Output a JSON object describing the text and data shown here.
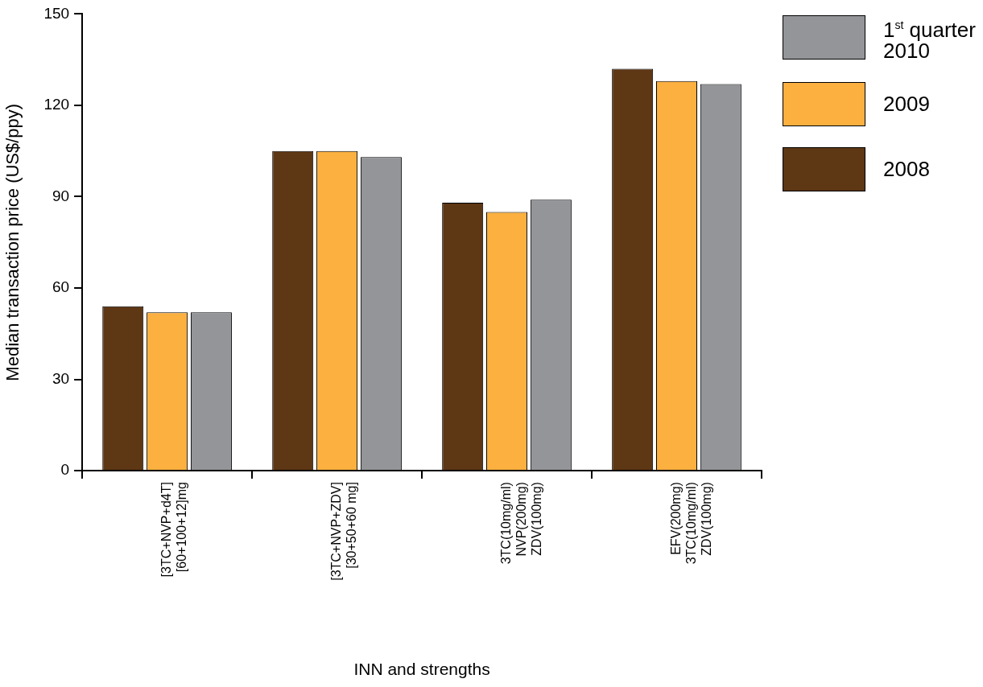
{
  "chart_data": {
    "type": "bar",
    "xlabel": "INN and strengths",
    "ylabel": "Median transaction price (US$/ppy)",
    "categories": [
      "[3TC+NVP+d4T]\n[60+100+12]mg",
      "[3TC+NVP+ZDV]\n[30+50+60 mg]",
      "3TC(10mg/ml)\nNVP(200mg)\nZDV(100mg)",
      "EFV(200mg)\n3TC(10mg/ml)\nZDV(100mg)"
    ],
    "series": [
      {
        "name": "2008",
        "color": "#5e3714",
        "values": [
          54,
          105,
          88,
          132
        ]
      },
      {
        "name": "2009",
        "color": "#fbb040",
        "values": [
          52,
          105,
          85,
          128
        ]
      },
      {
        "name": "1$^{st}$ quarter 2010",
        "color": "#939598",
        "values": [
          52,
          103,
          89,
          127
        ]
      }
    ],
    "ylim": [
      0,
      150
    ],
    "yticks": [
      0,
      30,
      60,
      90,
      120,
      150
    ],
    "grid": false,
    "legend": "top right"
  }
}
